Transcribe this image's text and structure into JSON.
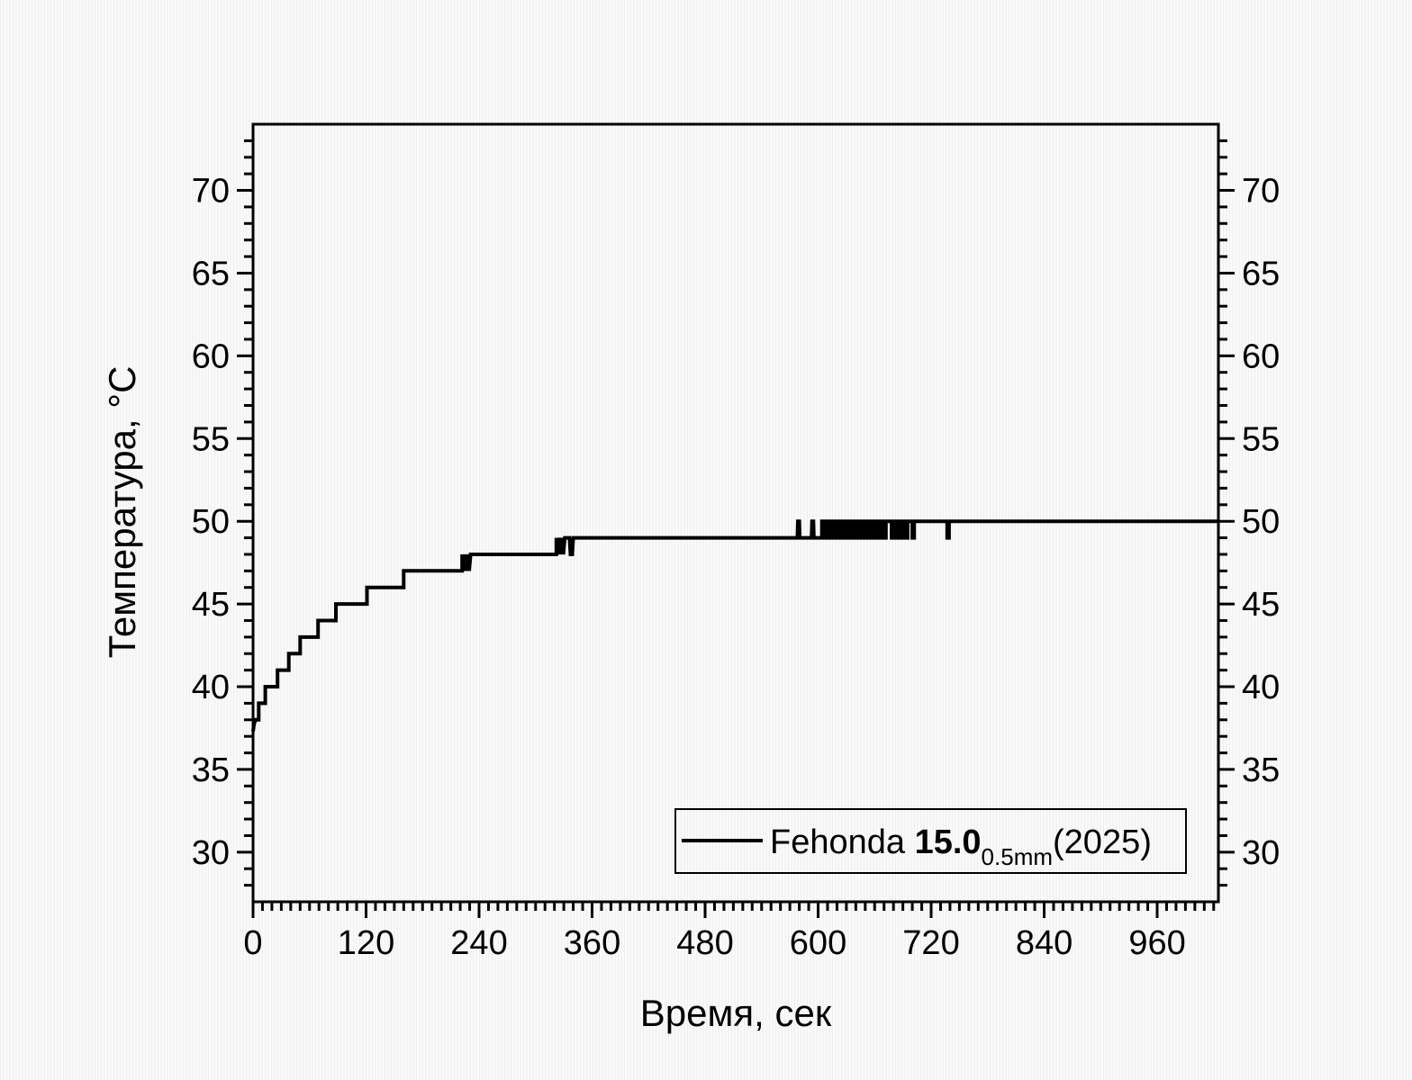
{
  "chart_data": {
    "type": "line",
    "title": "",
    "xlabel": "Время, сек",
    "ylabel": "Температура, °C",
    "xlim": [
      0,
      1025
    ],
    "ylim": [
      27,
      74
    ],
    "x_major_ticks": [
      0,
      120,
      240,
      360,
      480,
      600,
      720,
      840,
      960
    ],
    "x_minor_step": 10,
    "y_major_ticks": [
      30,
      35,
      40,
      45,
      50,
      55,
      60,
      65,
      70
    ],
    "y_minor_step": 1,
    "grid": false,
    "frame_color": "#000000",
    "line_color": "#000000",
    "background_stripe_color": "#eeeeee",
    "background_color": "#fafafa",
    "legend": {
      "position": "bottom-right",
      "prefix": "Fehonda ",
      "bold": "15.0",
      "sub": "0.5mm",
      "suffix": "(2025)"
    },
    "series": [
      {
        "name": "Fehonda 15.0 0.5mm (2025)",
        "points": [
          [
            0,
            37.3
          ],
          [
            1,
            37.7
          ],
          [
            2.5,
            38
          ],
          [
            6,
            38
          ],
          [
            6,
            39
          ],
          [
            13,
            39
          ],
          [
            13,
            40
          ],
          [
            26,
            40
          ],
          [
            26,
            41
          ],
          [
            38,
            41
          ],
          [
            38,
            42
          ],
          [
            50,
            42
          ],
          [
            50,
            43
          ],
          [
            69,
            43
          ],
          [
            69,
            44
          ],
          [
            88,
            44
          ],
          [
            88,
            45
          ],
          [
            121,
            45
          ],
          [
            121,
            46
          ],
          [
            160,
            46
          ],
          [
            160,
            47
          ],
          [
            222,
            47
          ],
          [
            222,
            48
          ],
          [
            223.5,
            47
          ],
          [
            225,
            48
          ],
          [
            226.5,
            47
          ],
          [
            228,
            48
          ],
          [
            229.5,
            47
          ],
          [
            231,
            48
          ],
          [
            322,
            48
          ],
          [
            322,
            49
          ],
          [
            323.5,
            48
          ],
          [
            325,
            49
          ],
          [
            326.5,
            48
          ],
          [
            328,
            49
          ],
          [
            329.5,
            48
          ],
          [
            331,
            49
          ],
          [
            336,
            49
          ],
          [
            337,
            48
          ],
          [
            339,
            48
          ],
          [
            340,
            49
          ],
          [
            578,
            49
          ],
          [
            578.5,
            50
          ],
          [
            580,
            50
          ],
          [
            580.5,
            49
          ],
          [
            593,
            49
          ],
          [
            593.5,
            50
          ],
          [
            595,
            50
          ],
          [
            595.5,
            49
          ],
          [
            604,
            49
          ],
          [
            604,
            50
          ],
          [
            606,
            50
          ],
          [
            606,
            49
          ],
          [
            608,
            49
          ],
          [
            608,
            50
          ],
          [
            611,
            50
          ],
          [
            611,
            49
          ],
          [
            613,
            49
          ],
          [
            613,
            50
          ],
          [
            616,
            50
          ],
          [
            616,
            49
          ],
          [
            618,
            49
          ],
          [
            618,
            50
          ],
          [
            621,
            50
          ],
          [
            621,
            49
          ],
          [
            623,
            49
          ],
          [
            623,
            50
          ],
          [
            626,
            50
          ],
          [
            626,
            49
          ],
          [
            628,
            49
          ],
          [
            628,
            50
          ],
          [
            631,
            50
          ],
          [
            631,
            49
          ],
          [
            633,
            49
          ],
          [
            633,
            50
          ],
          [
            636,
            50
          ],
          [
            636,
            49
          ],
          [
            638,
            49
          ],
          [
            638,
            50
          ],
          [
            641,
            50
          ],
          [
            641,
            49
          ],
          [
            643,
            49
          ],
          [
            643,
            50
          ],
          [
            646,
            50
          ],
          [
            646,
            49
          ],
          [
            648,
            49
          ],
          [
            648,
            50
          ],
          [
            651,
            50
          ],
          [
            651,
            49
          ],
          [
            653,
            49
          ],
          [
            653,
            50
          ],
          [
            656,
            50
          ],
          [
            656,
            49
          ],
          [
            658,
            49
          ],
          [
            658,
            50
          ],
          [
            660,
            50
          ],
          [
            660,
            49
          ],
          [
            662,
            49
          ],
          [
            662,
            50
          ],
          [
            665,
            50
          ],
          [
            665,
            49
          ],
          [
            667,
            49
          ],
          [
            667,
            50
          ],
          [
            670,
            50
          ],
          [
            670,
            49
          ],
          [
            672,
            49
          ],
          [
            672,
            50
          ],
          [
            678,
            50
          ],
          [
            678,
            49
          ],
          [
            680,
            49
          ],
          [
            680,
            50
          ],
          [
            683,
            50
          ],
          [
            683,
            49
          ],
          [
            685,
            49
          ],
          [
            685,
            50
          ],
          [
            688,
            50
          ],
          [
            688,
            49
          ],
          [
            690,
            49
          ],
          [
            690,
            50
          ],
          [
            693,
            50
          ],
          [
            693,
            49
          ],
          [
            695,
            49
          ],
          [
            695,
            50
          ],
          [
            700,
            50
          ],
          [
            700,
            49
          ],
          [
            702,
            49
          ],
          [
            702,
            50
          ],
          [
            737,
            50
          ],
          [
            737,
            49
          ],
          [
            739,
            49
          ],
          [
            739,
            50
          ],
          [
            1025,
            50
          ]
        ]
      }
    ]
  }
}
